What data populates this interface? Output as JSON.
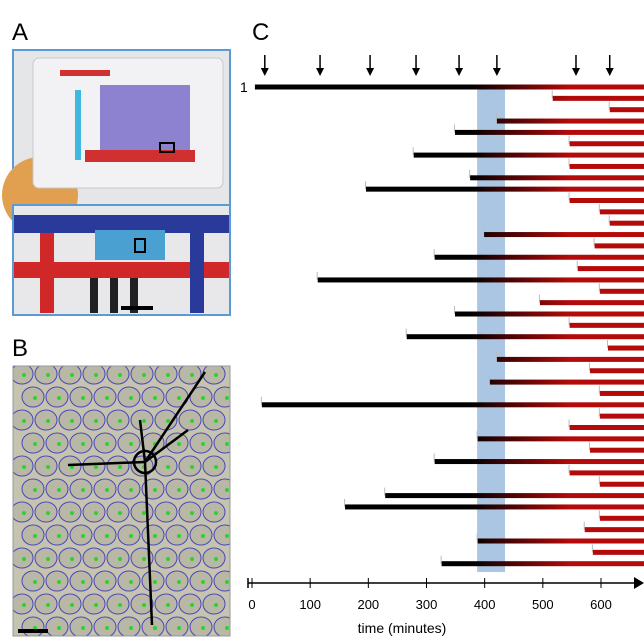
{
  "panels": {
    "a": "A",
    "b": "B",
    "c": "C"
  },
  "chart_data": {
    "type": "lineage",
    "root_label": "1",
    "xlabel": "time (minutes)",
    "xlim": [
      0,
      674
    ],
    "xticks": [
      0,
      100,
      200,
      300,
      400,
      500,
      600
    ],
    "arrows": [
      22,
      117,
      203,
      282,
      356,
      421,
      557,
      615
    ],
    "highlight": [
      387,
      435
    ],
    "bar_starts": [
      5,
      517,
      615,
      421,
      349,
      546,
      278,
      546,
      375,
      196,
      546,
      598,
      615,
      399,
      589,
      314,
      560,
      113,
      598,
      495,
      349,
      546,
      266,
      612,
      421,
      581,
      409,
      598,
      17,
      598,
      546,
      388,
      581,
      314,
      546,
      598,
      229,
      160,
      598,
      572,
      388,
      586,
      326
    ]
  }
}
